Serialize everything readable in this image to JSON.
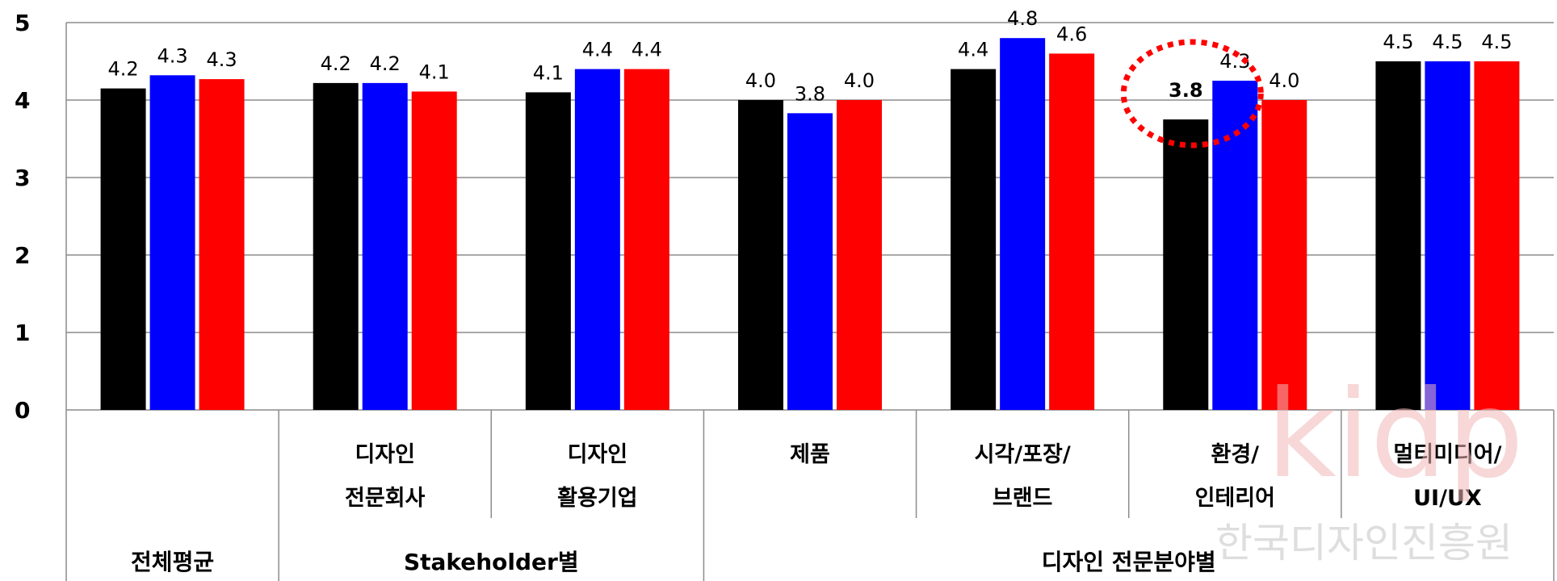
{
  "chart_data": {
    "type": "bar",
    "ylim": [
      0,
      5
    ],
    "yticks": [
      0,
      1,
      2,
      3,
      4,
      5
    ],
    "grid": true,
    "categories": [
      {
        "line1": "",
        "line2": ""
      },
      {
        "line1": "디자인",
        "line2": "전문회사"
      },
      {
        "line1": "디자인",
        "line2": "활용기업"
      },
      {
        "line1": "제품",
        "line2": ""
      },
      {
        "line1": "시각/포장/",
        "line2": "브랜드"
      },
      {
        "line1": "환경/",
        "line2": "인테리어"
      },
      {
        "line1": "멀티미디어/",
        "line2": "UI/UX"
      }
    ],
    "groups": [
      {
        "label": "전체평균",
        "span": [
          0,
          0
        ]
      },
      {
        "label": "Stakeholder별",
        "span": [
          1,
          2
        ]
      },
      {
        "label": "디자인 전문분야별",
        "span": [
          3,
          6
        ]
      }
    ],
    "series": [
      {
        "color": "#000000",
        "values": [
          4.15,
          4.22,
          4.1,
          4.0,
          4.4,
          3.75,
          4.5
        ],
        "labels": [
          "4.2",
          "4.2",
          "4.1",
          "4.0",
          "4.4",
          "3.8",
          "4.5"
        ]
      },
      {
        "color": "#0000ff",
        "values": [
          4.32,
          4.22,
          4.4,
          3.83,
          4.8,
          4.25,
          4.5
        ],
        "labels": [
          "4.3",
          "4.2",
          "4.4",
          "3.8",
          "4.8",
          "4.3",
          "4.5"
        ]
      },
      {
        "color": "#ff0000",
        "values": [
          4.27,
          4.11,
          4.4,
          4.0,
          4.6,
          4.0,
          4.5
        ],
        "labels": [
          "4.3",
          "4.1",
          "4.4",
          "4.0",
          "4.6",
          "4.0",
          "4.5"
        ]
      }
    ],
    "highlight": {
      "category_index": 5,
      "series_index": 0,
      "color": "#ff0000"
    }
  },
  "watermark": {
    "logo": "kidp",
    "org": "한국디자인진흥원"
  }
}
